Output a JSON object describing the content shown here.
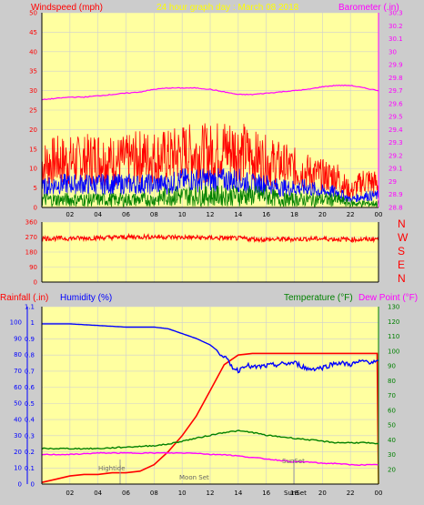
{
  "colors": {
    "background": "#cccccc",
    "panel": "#ffffa0",
    "grid": "#cfcfcf",
    "axis": "#000000",
    "windspeed": "#ff0000",
    "windgust_high": "#ff0000",
    "wind_avg": "#0000ff",
    "wind_low": "#008000",
    "barometer": "#ff00ff",
    "direction": "#ff0000",
    "rainfall": "#ff0000",
    "humidity": "#0000ff",
    "temperature": "#008000",
    "dewpoint": "#ff00ff",
    "title": "#ffff00"
  },
  "header": {
    "windspeed_label": "Windspeed (mph)",
    "title": "24 hour graph day : March 08 2018",
    "barometer_label": "Barometer (.in)"
  },
  "lower_header": {
    "rainfall_label": "Rainfall (.in)",
    "humidity_label": "Humidity (%)",
    "temperature_label": "Temperature (°F)",
    "dewpoint_label": "Dew Point (°F)"
  },
  "compass": [
    "N",
    "W",
    "S",
    "E",
    "N"
  ],
  "annotations": {
    "hightide": "Hightide",
    "moonset": "Moon Set",
    "sunset": "SunSet",
    "sunset_axis": "SunSet"
  },
  "x_ticks": [
    "02",
    "04",
    "06",
    "08",
    "10",
    "12",
    "14",
    "16",
    "18",
    "20",
    "22",
    "00"
  ],
  "chart_data": [
    {
      "type": "line",
      "name": "wind-barometer",
      "xlim": [
        0,
        24
      ],
      "ylim_left": [
        0,
        50
      ],
      "ylim_right": [
        28.8,
        30.3
      ],
      "left_ticks": [
        0,
        5,
        10,
        15,
        20,
        25,
        30,
        35,
        40,
        45,
        50
      ],
      "right_ticks": [
        "28.8",
        "28.9",
        "29",
        "29.1",
        "29.2",
        "29.3",
        "29.4",
        "29.5",
        "29.6",
        "29.7",
        "29.8",
        "29.9",
        "30",
        "30.1",
        "30.2",
        "30.3"
      ],
      "series": [
        {
          "name": "Windspeed (mph)",
          "role": "gust",
          "x": [
            0,
            1,
            2,
            3,
            4,
            5,
            6,
            7,
            8,
            9,
            10,
            11,
            12,
            13,
            14,
            15,
            16,
            17,
            18,
            19,
            20,
            21,
            22,
            23,
            24
          ],
          "y": [
            11,
            12,
            12,
            12,
            13,
            12,
            12,
            13,
            13,
            13,
            14,
            14,
            14,
            15,
            15,
            13,
            12,
            11,
            10,
            9,
            8,
            8,
            4,
            7,
            6
          ]
        },
        {
          "name": "",
          "role": "avg",
          "x": [
            0,
            1,
            2,
            3,
            4,
            5,
            6,
            7,
            8,
            9,
            10,
            11,
            12,
            13,
            14,
            15,
            16,
            17,
            18,
            19,
            20,
            21,
            22,
            23,
            24
          ],
          "y": [
            5,
            6,
            6,
            6,
            6,
            6,
            6,
            6,
            6,
            6,
            7,
            7,
            7,
            7,
            7,
            6,
            6,
            5,
            5,
            5,
            4,
            4,
            2,
            3,
            3
          ]
        },
        {
          "name": "",
          "role": "low",
          "x": [
            0,
            1,
            2,
            3,
            4,
            5,
            6,
            7,
            8,
            9,
            10,
            11,
            12,
            13,
            14,
            15,
            16,
            17,
            18,
            19,
            20,
            21,
            22,
            23,
            24
          ],
          "y": [
            2,
            2,
            2,
            2,
            2,
            2,
            2,
            2,
            2,
            3,
            3,
            3,
            3,
            3,
            3,
            3,
            3,
            2,
            2,
            2,
            2,
            2,
            1,
            1,
            1
          ]
        },
        {
          "name": "Barometer (.in)",
          "axis": "right",
          "x": [
            0,
            1,
            2,
            3,
            4,
            5,
            6,
            7,
            8,
            9,
            10,
            11,
            12,
            13,
            14,
            15,
            16,
            17,
            18,
            19,
            20,
            21,
            22,
            23,
            24
          ],
          "y": [
            29.63,
            29.64,
            29.65,
            29.65,
            29.66,
            29.67,
            29.68,
            29.69,
            29.71,
            29.72,
            29.72,
            29.72,
            29.71,
            29.69,
            29.67,
            29.67,
            29.68,
            29.69,
            29.7,
            29.71,
            29.73,
            29.74,
            29.74,
            29.72,
            29.7
          ]
        }
      ]
    },
    {
      "type": "line",
      "name": "wind-direction",
      "xlim": [
        0,
        24
      ],
      "ylim": [
        0,
        360
      ],
      "ticks": [
        0,
        90,
        180,
        270,
        360
      ],
      "series": [
        {
          "name": "",
          "x": [
            0,
            2,
            4,
            6,
            8,
            10,
            12,
            14,
            16,
            18,
            20,
            22,
            23,
            24
          ],
          "y": [
            262,
            262,
            265,
            270,
            272,
            268,
            265,
            262,
            255,
            258,
            260,
            255,
            255,
            260
          ]
        }
      ]
    },
    {
      "type": "line",
      "name": "rain-humidity-temp",
      "xlim": [
        0,
        24
      ],
      "ylim_left_rain": [
        0,
        1.1
      ],
      "ylim_left_humidity": [
        0,
        100
      ],
      "ylim_right": [
        10,
        130
      ],
      "rain_ticks": [
        "0",
        "0.1",
        "0.2",
        "0.3",
        "0.4",
        "0.5",
        "0.6",
        "0.7",
        "0.8",
        "0.9",
        "1",
        "1.1"
      ],
      "humidity_ticks": [
        0,
        10,
        20,
        30,
        40,
        50,
        60,
        70,
        80,
        90,
        100
      ],
      "temp_ticks": [
        20,
        30,
        40,
        50,
        60,
        70,
        80,
        90,
        100,
        110,
        120,
        130
      ],
      "series": [
        {
          "name": "Rainfall (.in)",
          "x": [
            0,
            1,
            2,
            3,
            4,
            5,
            6,
            7,
            8,
            9,
            10,
            11,
            12,
            13,
            14,
            15,
            16,
            17,
            18,
            19,
            20,
            21,
            22,
            23,
            23.9,
            24
          ],
          "y": [
            0.01,
            0.03,
            0.05,
            0.06,
            0.06,
            0.07,
            0.07,
            0.08,
            0.12,
            0.2,
            0.3,
            0.42,
            0.58,
            0.74,
            0.8,
            0.81,
            0.81,
            0.81,
            0.81,
            0.81,
            0.81,
            0.81,
            0.81,
            0.81,
            0.81,
            0.0
          ]
        },
        {
          "name": "Humidity (%)",
          "x": [
            0,
            2,
            4,
            6,
            8,
            9,
            10,
            11,
            12,
            13,
            13.5,
            14,
            14.5,
            15,
            16,
            17,
            18,
            19,
            20,
            21,
            22,
            23,
            24
          ],
          "y": [
            99,
            99,
            98,
            97,
            97,
            96,
            93,
            90,
            86,
            79,
            73,
            70,
            74,
            72,
            73,
            74,
            75,
            71,
            72,
            75,
            74,
            76,
            75
          ]
        },
        {
          "name": "Temperature (°F)",
          "x": [
            0,
            2,
            4,
            6,
            8,
            9,
            10,
            11,
            12,
            13,
            14,
            15,
            16,
            17,
            18,
            19,
            20,
            21,
            22,
            23,
            24
          ],
          "y": [
            34,
            34,
            34,
            35,
            36,
            37,
            39,
            41,
            43,
            45,
            46,
            45,
            43,
            42,
            41,
            40,
            39,
            38,
            38,
            38,
            37
          ]
        },
        {
          "name": "Dew Point (°F)",
          "x": [
            0,
            2,
            4,
            6,
            8,
            9,
            10,
            11,
            12,
            13,
            14,
            15,
            16,
            17,
            18,
            19,
            20,
            21,
            22,
            23,
            24
          ],
          "y": [
            30,
            30,
            31,
            31,
            31,
            31,
            31,
            31,
            30,
            30,
            29,
            28,
            27,
            26,
            25,
            25,
            24,
            24,
            23,
            23,
            23
          ]
        }
      ]
    }
  ]
}
